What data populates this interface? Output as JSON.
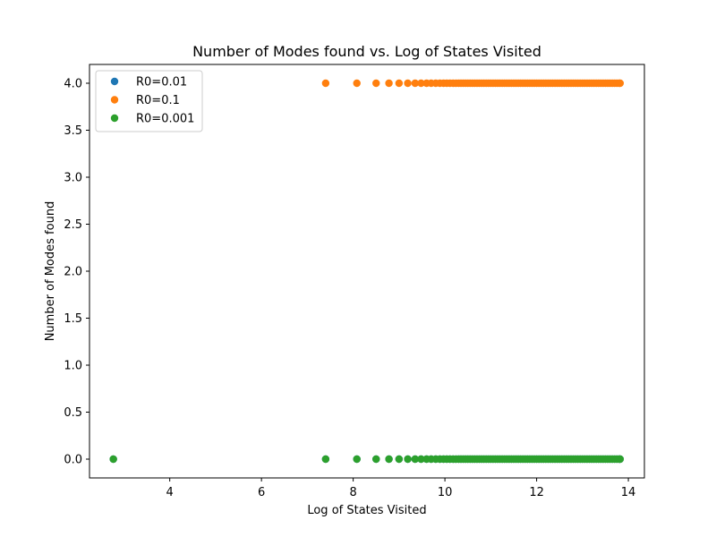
{
  "chart_data": {
    "type": "scatter",
    "title": "Number of Modes found vs. Log of States Visited",
    "xlabel": "Log of States Visited",
    "ylabel": "Number of Modes found",
    "xlim": [
      2.25,
      14.35
    ],
    "ylim": [
      -0.2,
      4.2
    ],
    "xticks": [
      4,
      6,
      8,
      10,
      12,
      14
    ],
    "yticks": [
      0.0,
      0.5,
      1.0,
      1.5,
      2.0,
      2.5,
      3.0,
      3.5,
      4.0
    ],
    "ytick_labels": [
      "0.0",
      "0.5",
      "1.0",
      "1.5",
      "2.0",
      "2.5",
      "3.0",
      "3.5",
      "4.0"
    ],
    "grid": false,
    "legend_position": "top-left",
    "log_x_points": {
      "early": [
        2.77,
        7.4,
        8.08,
        8.5,
        8.78,
        9.0,
        9.19,
        9.35,
        9.48,
        9.6,
        9.7,
        9.8,
        9.89,
        9.97,
        10.04,
        10.11,
        10.18,
        10.24,
        10.3,
        10.35,
        10.4,
        10.45,
        10.5,
        10.55,
        10.6,
        10.65,
        10.7,
        10.75,
        10.8,
        10.85,
        10.9,
        10.95,
        11.0,
        11.05,
        11.1,
        11.15,
        11.2,
        11.25,
        11.3,
        11.35,
        11.4,
        11.45,
        11.5,
        11.55,
        11.6,
        11.65,
        11.7,
        11.75,
        11.8,
        11.85,
        11.9,
        11.95,
        12.0,
        12.05,
        12.1,
        12.15,
        12.2,
        12.25,
        12.3,
        12.35,
        12.4,
        12.45,
        12.5,
        12.55,
        12.6,
        12.65,
        12.7,
        12.75,
        12.8,
        12.85,
        12.9,
        12.95,
        13.0,
        13.05,
        13.1,
        13.15,
        13.2,
        13.25,
        13.3,
        13.35,
        13.4,
        13.45,
        13.5,
        13.55,
        13.6,
        13.65,
        13.7,
        13.75,
        13.8,
        13.82
      ]
    },
    "series": [
      {
        "name": "R0=0.01",
        "color": "#1f77b4",
        "x_ref": "early",
        "y_constant": 0.0
      },
      {
        "name": "R0=0.1",
        "color": "#ff7f0e",
        "x_ref": "early",
        "x_skip_first": true,
        "y_constant": 4.0
      },
      {
        "name": "R0=0.001",
        "color": "#2ca02c",
        "x_ref": "early",
        "y_constant": 0.0
      }
    ]
  }
}
